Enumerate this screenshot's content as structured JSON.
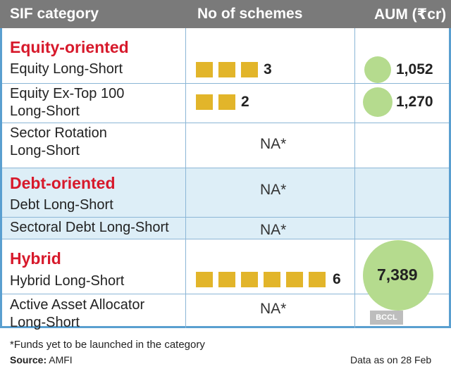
{
  "table": {
    "headers": [
      "SIF category",
      "No of schemes",
      "AUM (₹cr)"
    ],
    "groups": [
      {
        "category": "Equity-oriented",
        "rows": [
          {
            "lines": [
              "Equity Long-Short"
            ],
            "schemes": 3,
            "schemes_label": "3",
            "aum": 1052,
            "aum_label": "1,052"
          },
          {
            "lines": [
              "Equity Ex-Top 100",
              "Long-Short"
            ],
            "schemes": 2,
            "schemes_label": "2",
            "aum": 1270,
            "aum_label": "1,270"
          },
          {
            "lines": [
              "Sector Rotation",
              "Long-Short"
            ],
            "schemes_label": "NA*"
          }
        ]
      },
      {
        "category": "Debt-oriented",
        "rows": [
          {
            "lines": [
              "Debt Long-Short"
            ],
            "schemes_label": "NA*"
          },
          {
            "lines": [
              "Sectoral Debt Long-Short"
            ],
            "schemes_label": "NA*"
          }
        ]
      },
      {
        "category": "Hybrid",
        "rows": [
          {
            "lines": [
              "Hybrid Long-Short"
            ],
            "schemes": 6,
            "schemes_label": "6",
            "aum": 7389,
            "aum_label": "7,389"
          },
          {
            "lines": [
              "Active Asset Allocator",
              "Long-Short"
            ],
            "schemes_label": "NA*"
          }
        ]
      }
    ]
  },
  "footnote": "*Funds yet to be launched in the category",
  "source_label": "Source:",
  "source_value": "AMFI",
  "date_note": "Data as on 28 Feb",
  "watermark": "BCCL",
  "colors": {
    "header_bg": "#7a7a7a",
    "category_text": "#d7192b",
    "scheme_square": "#e2b52a",
    "aum_circle": "#b5db8e",
    "debt_band": "#ddeef7",
    "border": "#5a9fd0"
  },
  "chart_data": {
    "type": "table",
    "columns": [
      "SIF category",
      "No of schemes",
      "AUM (₹cr)"
    ],
    "rows": [
      [
        "Equity Long-Short",
        3,
        1052
      ],
      [
        "Equity Ex-Top 100 Long-Short",
        2,
        1270
      ],
      [
        "Sector Rotation Long-Short",
        "NA*",
        null
      ],
      [
        "Debt Long-Short",
        "NA*",
        null
      ],
      [
        "Sectoral Debt Long-Short",
        "NA*",
        null
      ],
      [
        "Hybrid Long-Short",
        6,
        7389
      ],
      [
        "Active Asset Allocator Long-Short",
        "NA*",
        null
      ]
    ]
  }
}
